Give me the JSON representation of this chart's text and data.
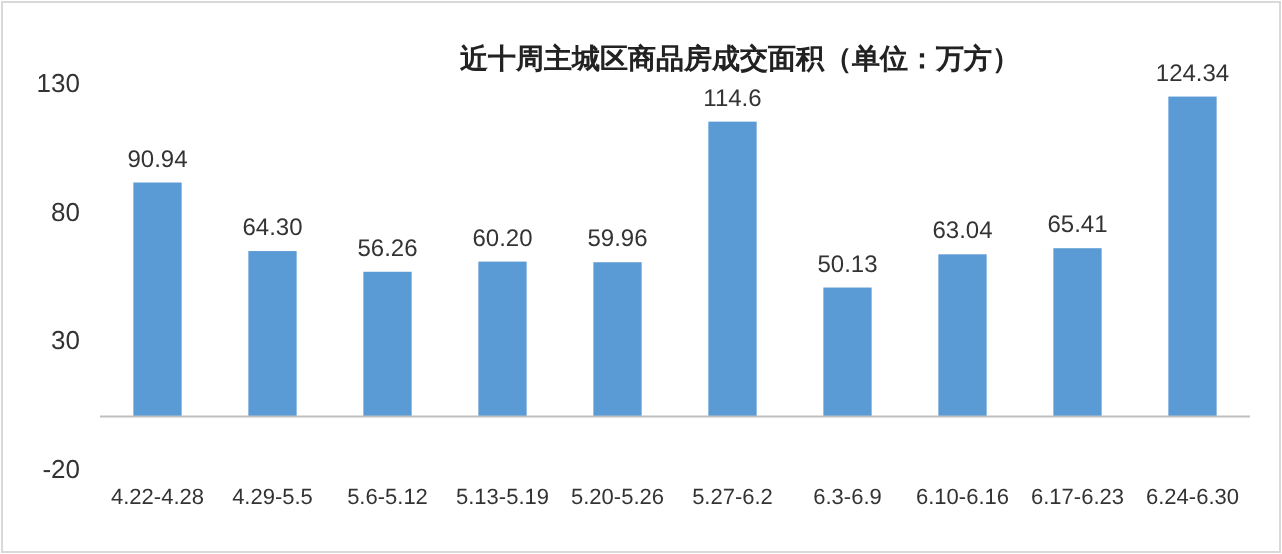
{
  "chart_data": {
    "type": "bar",
    "title": "近十周主城区商品房成交面积（单位：万方）",
    "categories": [
      "4.22-4.28",
      "4.29-5.5",
      "5.6-5.12",
      "5.13-5.19",
      "5.20-5.26",
      "5.27-6.2",
      "6.3-6.9",
      "6.10-6.16",
      "6.17-6.23",
      "6.24-6.30"
    ],
    "values": [
      90.94,
      64.3,
      56.26,
      60.2,
      59.96,
      114.6,
      50.13,
      63.04,
      65.41,
      124.34
    ],
    "value_labels": [
      "90.94",
      "64.30",
      "56.26",
      "60.20",
      "59.96",
      "114.6",
      "50.13",
      "63.04",
      "65.41",
      "124.34"
    ],
    "color": "#5b9bd5",
    "ylim": [
      -20,
      130
    ],
    "yticks": [
      -20,
      30,
      80,
      130
    ]
  }
}
